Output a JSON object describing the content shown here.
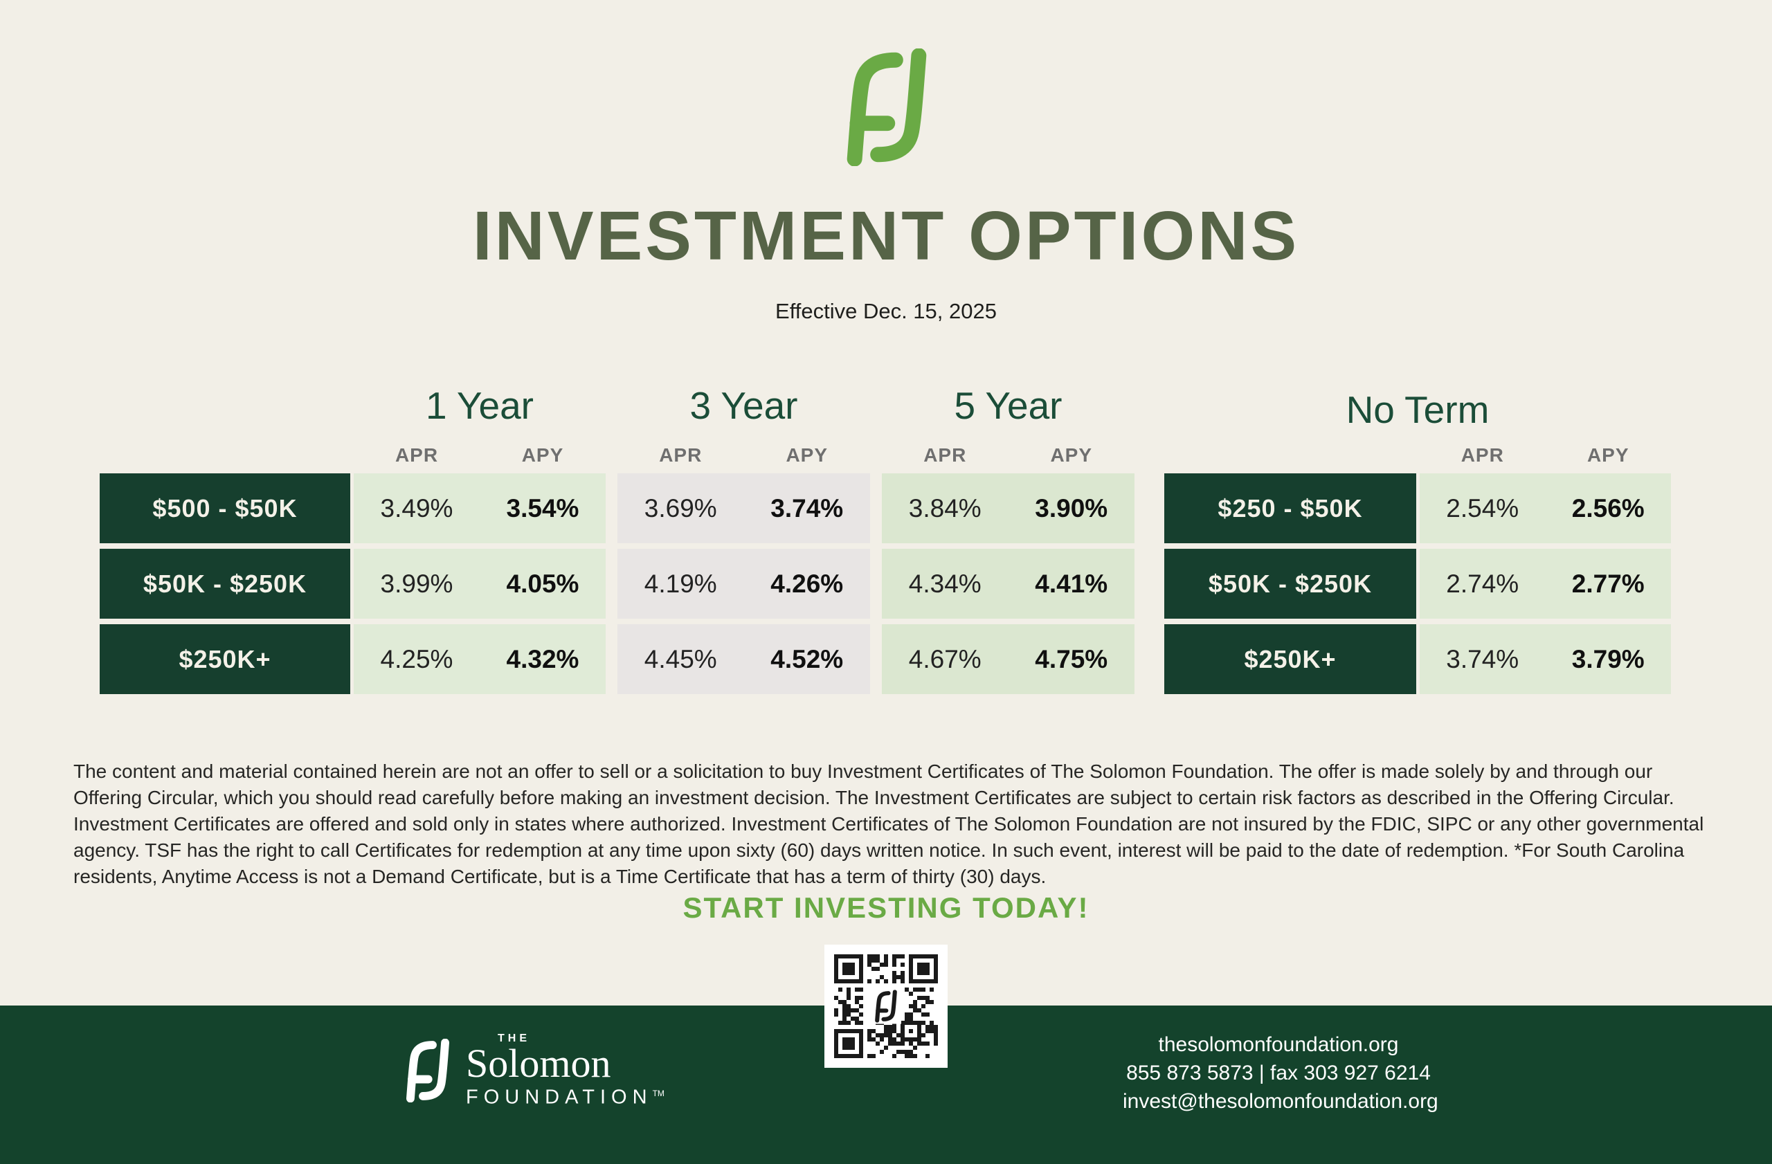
{
  "title": "INVESTMENT OPTIONS",
  "effective_date": "Effective Dec. 15, 2025",
  "rate_table": {
    "col_headers": {
      "apr": "APR",
      "apy": "APY"
    },
    "main": {
      "tiers": [
        "$500 - $50K",
        "$50K - $250K",
        "$250K+"
      ],
      "terms": [
        {
          "label": "1 Year",
          "rates": [
            [
              "3.49%",
              "3.54%"
            ],
            [
              "3.99%",
              "4.05%"
            ],
            [
              "4.25%",
              "4.32%"
            ]
          ]
        },
        {
          "label": "3 Year",
          "rates": [
            [
              "3.69%",
              "3.74%"
            ],
            [
              "4.19%",
              "4.26%"
            ],
            [
              "4.45%",
              "4.52%"
            ]
          ]
        },
        {
          "label": "5 Year",
          "rates": [
            [
              "3.84%",
              "3.90%"
            ],
            [
              "4.34%",
              "4.41%"
            ],
            [
              "4.67%",
              "4.75%"
            ]
          ]
        }
      ]
    },
    "no_term": {
      "label": "No Term",
      "tiers": [
        "$250 - $50K",
        "$50K - $250K",
        "$250K+"
      ],
      "rates": [
        [
          "2.54%",
          "2.56%"
        ],
        [
          "2.74%",
          "2.77%"
        ],
        [
          "3.74%",
          "3.79%"
        ]
      ]
    }
  },
  "disclaimer": "The content and material contained herein are not an offer to sell or a solicitation to buy Investment Certificates of The Solomon Foundation. The offer is made solely by and through our Offering Circular, which you should read carefully before making an investment decision. The Investment Certificates are subject to certain risk factors as described in the Offering Circular. Investment Certificates are offered and sold only in states where authorized. Investment Certificates of The Solomon Foundation are not insured by the FDIC, SIPC or any other governmental agency. TSF has the right to call Certificates for redemption at any time upon sixty (60) days written notice. In such event, interest will be paid to the date of redemption. *For South Carolina residents, Anytime Access is not a Demand Certificate, but is a Time Certificate that has a term of thirty (30) days.",
  "cta": "START INVESTING TODAY!",
  "footer": {
    "brand_the": "THE",
    "brand_name": "Solomon",
    "brand_foundation": "FOUNDATION",
    "brand_tm": "TM",
    "website": "thesolomonfoundation.org",
    "phone_fax": "855 873 5873 | fax 303 927 6214",
    "email": "invest@thesolomonfoundation.org"
  },
  "icons": {
    "brand_logo": "fs-monogram",
    "qr": "qr-code"
  },
  "colors": {
    "bg": "#f2efe7",
    "olive": "#566447",
    "forest": "#1b4d38",
    "dark-box": "#163f2e",
    "footer-bg": "#14432c",
    "cell-green-1": "#e0ebd7",
    "cell-gray": "#e8e5e4",
    "cell-green-5": "#dbe7d0",
    "cell-green-nt": "#dfead5",
    "apple-green": "#6aaa45",
    "gray-label": "#6f6f6f",
    "text-dark": "#262624",
    "white-ish": "#f4f1e8"
  }
}
